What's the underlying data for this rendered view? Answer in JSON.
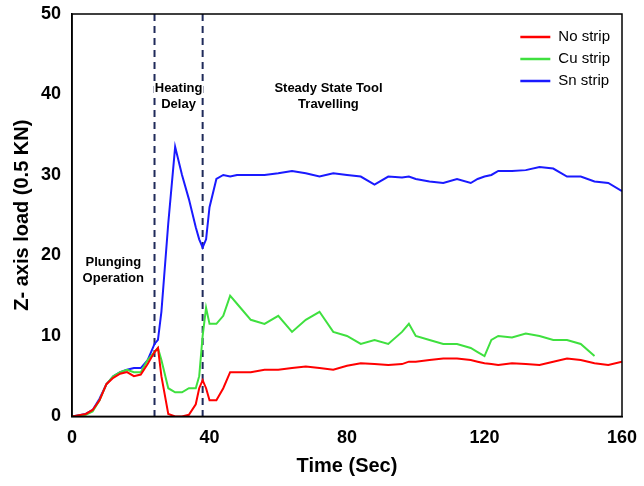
{
  "chart_data": {
    "type": "line",
    "x_label": "Time (Sec)",
    "y_label": "Z- axis load (0.5 KN)",
    "x": [
      0,
      4,
      6,
      8,
      10,
      12,
      14,
      16,
      18,
      20,
      22,
      24,
      25,
      26,
      28,
      30,
      32,
      34,
      36,
      37,
      38,
      39,
      40,
      42,
      44,
      46,
      48,
      52,
      56,
      60,
      64,
      68,
      72,
      76,
      80,
      84,
      88,
      92,
      96,
      98,
      100,
      104,
      108,
      112,
      116,
      118,
      120,
      122,
      124,
      128,
      132,
      136,
      140,
      144,
      148,
      152,
      156,
      160
    ],
    "series": [
      {
        "name": "No strip",
        "color": "#ff0000",
        "values": [
          0,
          0.3,
          0.8,
          2,
          4,
          4.8,
          5.3,
          5.5,
          5,
          5.2,
          6.5,
          8,
          8.5,
          5,
          0.3,
          0,
          0,
          0.2,
          1.5,
          3.5,
          4.5,
          3.5,
          2,
          2,
          3.5,
          5.5,
          5.5,
          5.5,
          5.8,
          5.8,
          6,
          6.2,
          6,
          5.8,
          6.3,
          6.6,
          6.5,
          6.4,
          6.5,
          6.8,
          6.8,
          7,
          7.2,
          7.2,
          7,
          6.8,
          6.6,
          6.5,
          6.4,
          6.6,
          6.5,
          6.4,
          6.8,
          7.2,
          7,
          6.6,
          6.4,
          6.8
        ]
      },
      {
        "name": "Cu strip",
        "color": "#3fe03f",
        "values": [
          0,
          0.2,
          0.6,
          2,
          4,
          5,
          5.5,
          5.8,
          5.5,
          5.5,
          7,
          8,
          8.5,
          7,
          3.5,
          3,
          3,
          3.5,
          3.5,
          5,
          10,
          13.5,
          11.5,
          11.5,
          12.5,
          15,
          14,
          12,
          11.5,
          12.5,
          10.5,
          12,
          13,
          10.5,
          10,
          9,
          9.5,
          9,
          10.5,
          11.5,
          10,
          9.5,
          9,
          9,
          8.5,
          8,
          7.5,
          9.5,
          10,
          9.8,
          10.3,
          10,
          9.5,
          9.5,
          9,
          7.5,
          null,
          null
        ]
      },
      {
        "name": "Sn strip",
        "color": "#1a1aff",
        "values": [
          0,
          0.3,
          0.8,
          2.2,
          4,
          5,
          5.5,
          5.8,
          6,
          6,
          7,
          9,
          9.5,
          13,
          24,
          33.5,
          30,
          27,
          23.5,
          22,
          21,
          22,
          26,
          29.5,
          30,
          29.8,
          30,
          30,
          30,
          30.2,
          30.5,
          30.2,
          29.8,
          30.2,
          30,
          29.8,
          28.8,
          29.8,
          29.7,
          29.8,
          29.5,
          29.2,
          29,
          29.5,
          29,
          29.5,
          29.8,
          30,
          30.5,
          30.5,
          30.6,
          31,
          30.8,
          29.8,
          29.8,
          29.2,
          29,
          28
        ]
      }
    ],
    "xlim": [
      0,
      160
    ],
    "xticks": [
      0,
      40,
      80,
      120,
      160
    ],
    "ylim": [
      0,
      50
    ],
    "yticks": [
      0,
      10,
      20,
      30,
      40,
      50
    ],
    "vlines": [
      24,
      38
    ],
    "annotations": [
      "Plunging Operation",
      "Heating Delay",
      "Steady State Tool Travelling"
    ],
    "legend": "upper right",
    "grid": false
  }
}
